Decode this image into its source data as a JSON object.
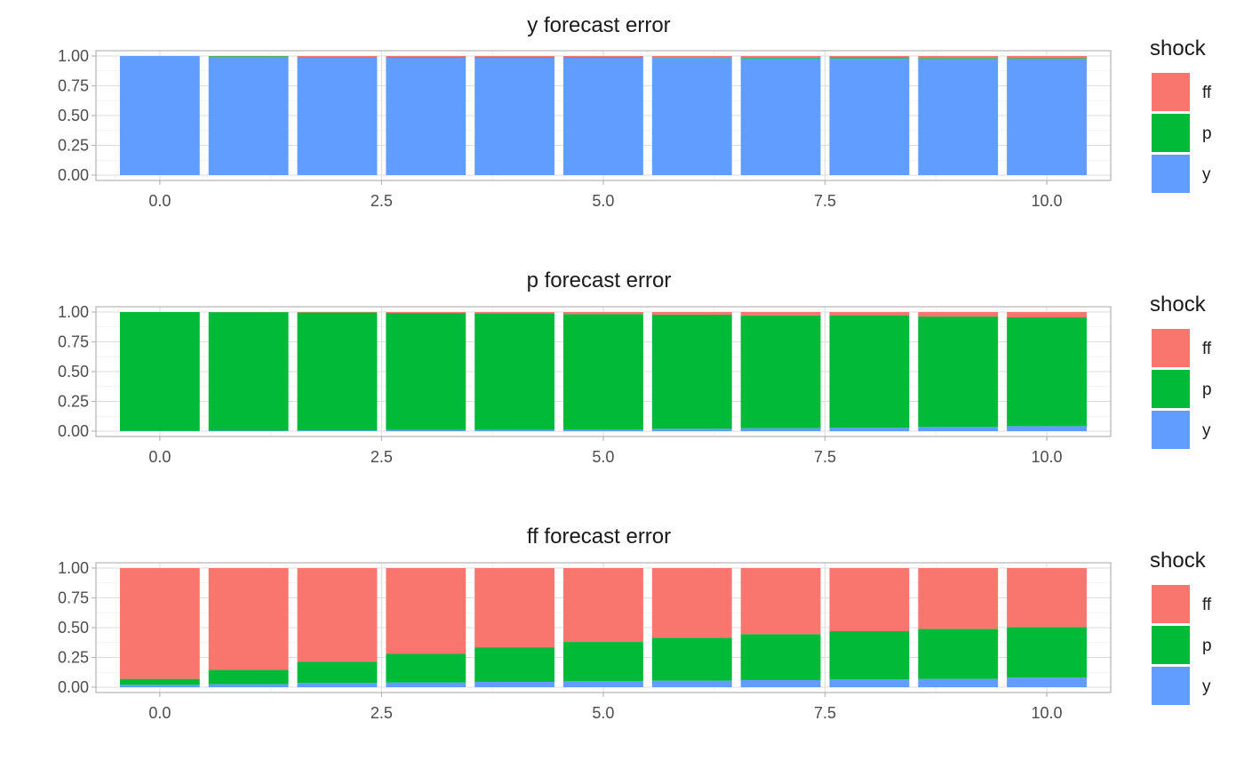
{
  "chart_data": [
    {
      "type": "bar",
      "stacked": true,
      "title": "y forecast error",
      "xlabel": "",
      "ylabel": "",
      "x": [
        0,
        1,
        2,
        3,
        4,
        5,
        6,
        7,
        8,
        9,
        10
      ],
      "xlim": [
        -0.5,
        10.5
      ],
      "xticks": [
        "0.0",
        "2.5",
        "5.0",
        "7.5",
        "10.0"
      ],
      "ylim": [
        0,
        1
      ],
      "yticks": [
        "0.00",
        "0.25",
        "0.50",
        "0.75",
        "1.00"
      ],
      "grid": true,
      "legend": {
        "title": "shock",
        "position": "right"
      },
      "series": [
        {
          "name": "y",
          "color": "#619CFF",
          "values": [
            1.0,
            0.99,
            0.985,
            0.985,
            0.985,
            0.985,
            0.983,
            0.98,
            0.98,
            0.975,
            0.975
          ]
        },
        {
          "name": "p",
          "color": "#00BA38",
          "values": [
            0.0,
            0.008,
            0.005,
            0.004,
            0.004,
            0.004,
            0.005,
            0.008,
            0.009,
            0.008,
            0.007
          ]
        },
        {
          "name": "ff",
          "color": "#F8766D",
          "values": [
            0.0,
            0.002,
            0.01,
            0.011,
            0.011,
            0.011,
            0.012,
            0.012,
            0.011,
            0.017,
            0.018
          ]
        }
      ]
    },
    {
      "type": "bar",
      "stacked": true,
      "title": "p forecast error",
      "xlabel": "",
      "ylabel": "",
      "x": [
        0,
        1,
        2,
        3,
        4,
        5,
        6,
        7,
        8,
        9,
        10
      ],
      "xlim": [
        -0.5,
        10.5
      ],
      "xticks": [
        "0.0",
        "2.5",
        "5.0",
        "7.5",
        "10.0"
      ],
      "ylim": [
        0,
        1
      ],
      "yticks": [
        "0.00",
        "0.25",
        "0.50",
        "0.75",
        "1.00"
      ],
      "grid": true,
      "legend": {
        "title": "shock",
        "position": "right"
      },
      "series": [
        {
          "name": "y",
          "color": "#619CFF",
          "values": [
            0.002,
            0.004,
            0.006,
            0.01,
            0.012,
            0.015,
            0.02,
            0.024,
            0.028,
            0.035,
            0.042
          ]
        },
        {
          "name": "p",
          "color": "#00BA38",
          "values": [
            0.998,
            0.995,
            0.99,
            0.982,
            0.978,
            0.968,
            0.958,
            0.948,
            0.945,
            0.927,
            0.913
          ]
        },
        {
          "name": "ff",
          "color": "#F8766D",
          "values": [
            0.0,
            0.001,
            0.004,
            0.008,
            0.01,
            0.017,
            0.022,
            0.028,
            0.027,
            0.038,
            0.045
          ]
        }
      ]
    },
    {
      "type": "bar",
      "stacked": true,
      "title": "ff forecast error",
      "xlabel": "",
      "ylabel": "",
      "x": [
        0,
        1,
        2,
        3,
        4,
        5,
        6,
        7,
        8,
        9,
        10
      ],
      "xlim": [
        -0.5,
        10.5
      ],
      "xticks": [
        "0.0",
        "2.5",
        "5.0",
        "7.5",
        "10.0"
      ],
      "ylim": [
        0,
        1
      ],
      "yticks": [
        "0.00",
        "0.25",
        "0.50",
        "0.75",
        "1.00"
      ],
      "grid": true,
      "legend": {
        "title": "shock",
        "position": "right"
      },
      "series": [
        {
          "name": "y",
          "color": "#619CFF",
          "values": [
            0.02,
            0.025,
            0.035,
            0.04,
            0.045,
            0.05,
            0.055,
            0.06,
            0.065,
            0.07,
            0.08
          ]
        },
        {
          "name": "p",
          "color": "#00BA38",
          "values": [
            0.05,
            0.12,
            0.18,
            0.24,
            0.29,
            0.33,
            0.36,
            0.385,
            0.405,
            0.42,
            0.425
          ]
        },
        {
          "name": "ff",
          "color": "#F8766D",
          "values": [
            0.93,
            0.855,
            0.785,
            0.72,
            0.665,
            0.62,
            0.585,
            0.555,
            0.53,
            0.51,
            0.495
          ]
        }
      ]
    }
  ]
}
